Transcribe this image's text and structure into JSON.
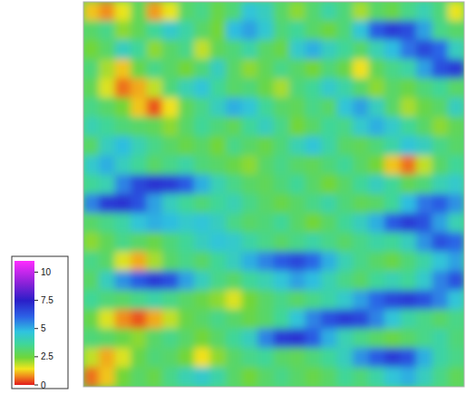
{
  "chart_data": {
    "type": "heatmap",
    "tick_labels": false,
    "cells": [
      [
        1.2,
        0.8,
        1.5,
        2.8,
        0.9,
        1.5,
        3.0,
        3.4,
        2.6,
        3.2,
        4.6,
        4.2,
        3.0,
        2.2,
        3.1,
        3.8,
        3.2,
        2.0,
        3.0,
        2.6,
        3.4,
        4.0,
        3.2,
        1.5
      ],
      [
        3.0,
        3.4,
        2.2,
        2.8,
        3.6,
        4.4,
        3.8,
        3.0,
        2.4,
        4.8,
        5.2,
        4.5,
        3.2,
        3.6,
        3.0,
        2.5,
        3.2,
        4.6,
        6.2,
        6.8,
        6.5,
        5.2,
        3.4,
        3.0
      ],
      [
        2.4,
        3.0,
        4.2,
        3.6,
        2.2,
        3.0,
        3.4,
        1.8,
        2.8,
        3.2,
        3.8,
        3.0,
        2.6,
        4.4,
        5.0,
        4.2,
        3.6,
        3.0,
        4.0,
        4.8,
        5.8,
        6.6,
        6.0,
        4.2
      ],
      [
        3.2,
        2.0,
        1.2,
        2.6,
        3.4,
        3.0,
        2.4,
        3.2,
        4.2,
        3.0,
        2.2,
        2.8,
        3.4,
        3.0,
        2.4,
        3.2,
        2.6,
        1.4,
        2.8,
        3.4,
        3.8,
        5.2,
        6.4,
        6.8
      ],
      [
        2.8,
        1.6,
        0.6,
        1.0,
        1.8,
        3.2,
        4.0,
        4.6,
        3.6,
        3.0,
        3.2,
        2.6,
        2.0,
        3.2,
        3.6,
        4.4,
        3.8,
        3.0,
        2.2,
        3.0,
        2.6,
        3.2,
        3.6,
        3.0
      ],
      [
        3.4,
        3.0,
        2.4,
        1.2,
        0.4,
        1.4,
        2.8,
        3.4,
        4.2,
        5.0,
        4.6,
        3.6,
        3.0,
        2.8,
        3.4,
        3.0,
        4.6,
        5.2,
        4.2,
        3.0,
        2.0,
        2.6,
        3.0,
        4.2
      ],
      [
        4.0,
        3.6,
        3.2,
        3.0,
        2.8,
        2.2,
        3.0,
        3.6,
        3.2,
        2.8,
        3.6,
        4.2,
        3.4,
        2.4,
        3.0,
        3.6,
        3.4,
        4.4,
        5.0,
        4.4,
        3.6,
        3.0,
        2.2,
        2.8
      ],
      [
        3.0,
        4.2,
        4.8,
        4.0,
        3.4,
        3.0,
        2.6,
        3.0,
        2.4,
        3.4,
        3.0,
        2.6,
        3.2,
        4.0,
        4.6,
        3.8,
        3.0,
        2.8,
        3.2,
        3.8,
        4.6,
        4.2,
        3.4,
        3.0
      ],
      [
        4.4,
        5.0,
        4.2,
        3.6,
        3.0,
        3.4,
        3.8,
        3.2,
        3.0,
        2.6,
        2.2,
        3.0,
        3.4,
        3.0,
        2.8,
        3.2,
        3.6,
        3.0,
        2.4,
        1.2,
        0.6,
        1.8,
        3.0,
        3.6
      ],
      [
        3.6,
        4.0,
        5.6,
        6.6,
        7.0,
        6.8,
        6.2,
        5.0,
        4.0,
        3.4,
        3.0,
        2.8,
        3.2,
        3.6,
        3.0,
        2.4,
        3.0,
        3.6,
        4.2,
        3.6,
        2.8,
        3.2,
        4.0,
        4.4
      ],
      [
        5.6,
        6.8,
        7.0,
        6.4,
        5.2,
        4.2,
        3.6,
        3.2,
        3.6,
        4.0,
        3.4,
        3.0,
        2.6,
        3.0,
        3.4,
        3.8,
        3.2,
        2.8,
        3.0,
        3.6,
        4.8,
        5.8,
        6.2,
        5.4
      ],
      [
        3.0,
        3.4,
        3.8,
        4.6,
        5.0,
        4.8,
        4.4,
        4.6,
        4.2,
        3.4,
        3.0,
        3.2,
        3.6,
        3.0,
        2.4,
        3.0,
        3.6,
        4.2,
        5.0,
        6.2,
        6.8,
        6.4,
        5.2,
        4.0
      ],
      [
        2.2,
        2.8,
        3.4,
        3.0,
        2.6,
        3.2,
        3.6,
        4.2,
        4.6,
        4.4,
        3.8,
        3.4,
        3.0,
        3.4,
        3.8,
        3.4,
        3.0,
        3.4,
        3.8,
        3.6,
        4.2,
        5.4,
        6.4,
        6.0
      ],
      [
        3.4,
        3.0,
        1.6,
        1.0,
        2.0,
        3.0,
        3.4,
        3.0,
        3.6,
        4.2,
        5.0,
        5.6,
        6.2,
        6.6,
        6.0,
        5.0,
        4.0,
        3.4,
        3.0,
        2.6,
        3.2,
        3.8,
        4.6,
        5.2
      ],
      [
        3.0,
        4.2,
        5.4,
        6.2,
        6.8,
        6.4,
        5.2,
        4.2,
        3.4,
        3.0,
        3.6,
        4.0,
        4.6,
        5.2,
        4.8,
        4.0,
        3.4,
        3.0,
        3.6,
        4.0,
        3.6,
        4.4,
        5.6,
        6.4
      ],
      [
        3.6,
        3.2,
        3.0,
        3.4,
        3.8,
        3.4,
        3.0,
        2.6,
        2.2,
        1.6,
        2.4,
        3.0,
        3.4,
        3.0,
        3.4,
        3.8,
        4.4,
        5.2,
        6.0,
        6.6,
        6.8,
        6.4,
        5.6,
        4.6
      ],
      [
        2.6,
        1.6,
        0.8,
        0.4,
        1.0,
        1.8,
        2.6,
        3.0,
        3.4,
        3.0,
        2.6,
        3.0,
        3.6,
        4.6,
        5.6,
        6.4,
        6.8,
        6.6,
        5.6,
        4.6,
        3.8,
        3.4,
        3.0,
        3.4
      ],
      [
        3.2,
        3.0,
        2.6,
        2.2,
        3.0,
        3.4,
        3.0,
        2.4,
        3.0,
        3.6,
        4.2,
        5.6,
        6.8,
        7.0,
        6.2,
        5.0,
        4.0,
        3.4,
        3.0,
        2.6,
        3.0,
        3.4,
        3.8,
        3.2
      ],
      [
        1.8,
        1.0,
        1.6,
        2.6,
        3.2,
        3.0,
        2.4,
        1.4,
        2.2,
        3.0,
        3.4,
        3.6,
        3.0,
        2.8,
        3.2,
        3.6,
        4.2,
        5.4,
        6.2,
        6.8,
        6.4,
        5.0,
        3.8,
        3.4
      ],
      [
        0.6,
        1.2,
        2.4,
        3.0,
        2.6,
        3.4,
        4.0,
        4.4,
        3.8,
        3.0,
        2.4,
        3.0,
        3.4,
        3.0,
        2.6,
        3.0,
        3.6,
        3.2,
        3.8,
        4.6,
        5.0,
        4.2,
        3.4,
        2.8
      ]
    ],
    "colorbar": {
      "lim": [
        0,
        11
      ],
      "ticks": [
        0,
        2.5,
        5,
        7.5,
        10
      ]
    }
  }
}
